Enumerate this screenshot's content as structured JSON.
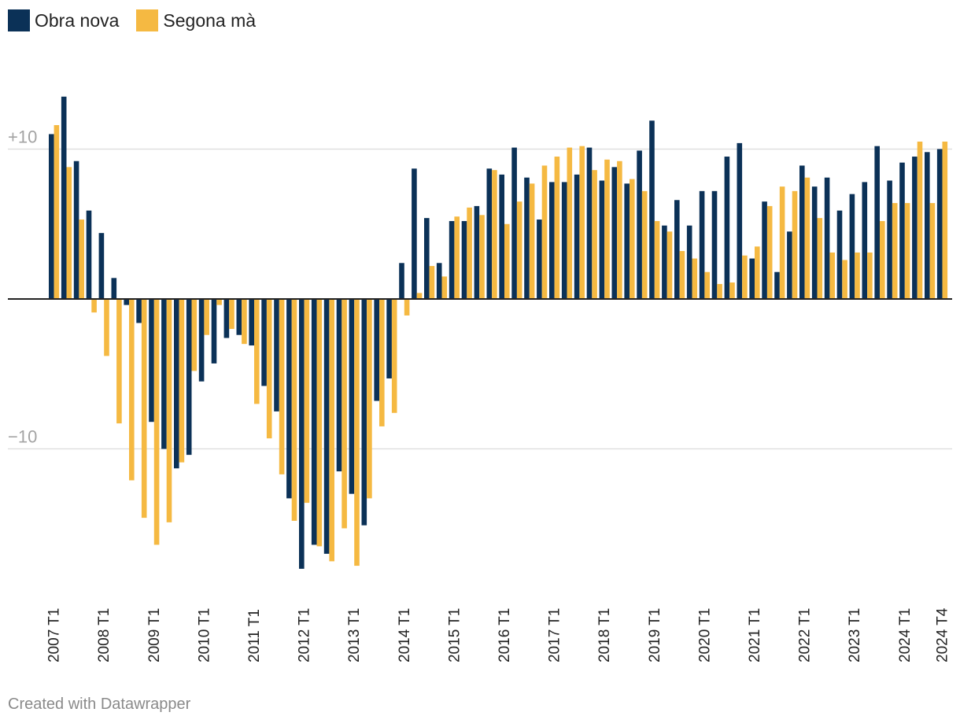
{
  "legend": [
    {
      "name": "Obra nova",
      "color": "#0b3157"
    },
    {
      "name": "Segona mà",
      "color": "#f5b942"
    }
  ],
  "credit": "Created with Datawrapper",
  "chart_data": {
    "type": "bar",
    "title": "",
    "xlabel": "",
    "ylabel": "",
    "ylim": [
      -20,
      14
    ],
    "grid": true,
    "y_ticks": [
      {
        "value": 10,
        "label": "+10"
      },
      {
        "value": 0,
        "label": ""
      },
      {
        "value": -10,
        "label": "−10"
      }
    ],
    "x_tick_labels": [
      {
        "index": 0,
        "label": "2007 T1"
      },
      {
        "index": 4,
        "label": "2008 T1"
      },
      {
        "index": 8,
        "label": "2009 T1"
      },
      {
        "index": 12,
        "label": "2010 T1"
      },
      {
        "index": 16,
        "label": "2011 T1"
      },
      {
        "index": 20,
        "label": "2012 T1"
      },
      {
        "index": 24,
        "label": "2013 T1"
      },
      {
        "index": 28,
        "label": "2014 T1"
      },
      {
        "index": 32,
        "label": "2015 T1"
      },
      {
        "index": 36,
        "label": "2016 T1"
      },
      {
        "index": 40,
        "label": "2017 T1"
      },
      {
        "index": 44,
        "label": "2018 T1"
      },
      {
        "index": 48,
        "label": "2019 T1"
      },
      {
        "index": 52,
        "label": "2020 T1"
      },
      {
        "index": 56,
        "label": "2021 T1"
      },
      {
        "index": 60,
        "label": "2022 T1"
      },
      {
        "index": 64,
        "label": "2023 T1"
      },
      {
        "index": 68,
        "label": "2024 T1"
      },
      {
        "index": 71,
        "label": "2024 T4"
      }
    ],
    "categories": [
      "2007 T1",
      "2007 T2",
      "2007 T3",
      "2007 T4",
      "2008 T1",
      "2008 T2",
      "2008 T3",
      "2008 T4",
      "2009 T1",
      "2009 T2",
      "2009 T3",
      "2009 T4",
      "2010 T1",
      "2010 T2",
      "2010 T3",
      "2010 T4",
      "2011 T1",
      "2011 T2",
      "2011 T3",
      "2011 T4",
      "2012 T1",
      "2012 T2",
      "2012 T3",
      "2012 T4",
      "2013 T1",
      "2013 T2",
      "2013 T3",
      "2013 T4",
      "2014 T1",
      "2014 T2",
      "2014 T3",
      "2014 T4",
      "2015 T1",
      "2015 T2",
      "2015 T3",
      "2015 T4",
      "2016 T1",
      "2016 T2",
      "2016 T3",
      "2016 T4",
      "2017 T1",
      "2017 T2",
      "2017 T3",
      "2017 T4",
      "2018 T1",
      "2018 T2",
      "2018 T3",
      "2018 T4",
      "2019 T1",
      "2019 T2",
      "2019 T3",
      "2019 T4",
      "2020 T1",
      "2020 T2",
      "2020 T3",
      "2020 T4",
      "2021 T1",
      "2021 T2",
      "2021 T3",
      "2021 T4",
      "2022 T1",
      "2022 T2",
      "2022 T3",
      "2022 T4",
      "2023 T1",
      "2023 T2",
      "2023 T3",
      "2023 T4",
      "2024 T1",
      "2024 T2",
      "2024 T3",
      "2024 T4"
    ],
    "series": [
      {
        "name": "Obra nova",
        "color": "#0b3157",
        "values": [
          11.0,
          13.5,
          9.2,
          5.9,
          4.4,
          1.4,
          -0.4,
          -1.6,
          -8.2,
          -10.0,
          -11.3,
          -10.4,
          -5.5,
          -4.3,
          -2.6,
          -2.4,
          -3.1,
          -5.8,
          -7.5,
          -13.3,
          -18.0,
          -16.4,
          -17.0,
          -11.5,
          -13.0,
          -15.1,
          -6.8,
          -5.3,
          2.4,
          8.7,
          5.4,
          2.4,
          5.2,
          5.2,
          6.2,
          8.7,
          8.3,
          10.1,
          8.1,
          5.3,
          7.8,
          7.8,
          8.3,
          10.1,
          7.9,
          8.8,
          7.7,
          9.9,
          11.9,
          4.9,
          6.6,
          4.9,
          7.2,
          7.2,
          9.5,
          10.4,
          2.7,
          6.5,
          1.8,
          4.5,
          8.9,
          7.5,
          8.1,
          5.9,
          7.0,
          7.8,
          10.2,
          7.9,
          9.1,
          9.5,
          9.8,
          10.0
        ]
      },
      {
        "name": "Segona mà",
        "color": "#f5b942",
        "values": [
          11.6,
          8.8,
          5.3,
          -0.9,
          -3.8,
          -8.3,
          -12.1,
          -14.6,
          -16.4,
          -14.9,
          -10.9,
          -4.8,
          -2.4,
          -0.4,
          -2.0,
          -3.0,
          -7.0,
          -9.3,
          -11.7,
          -14.8,
          -13.6,
          -16.5,
          -17.5,
          -15.3,
          -17.8,
          -13.3,
          -8.5,
          -7.6,
          -1.1,
          0.4,
          2.2,
          1.5,
          5.5,
          6.1,
          5.6,
          8.6,
          5.0,
          6.5,
          7.7,
          8.9,
          9.5,
          10.1,
          10.2,
          8.6,
          9.3,
          9.2,
          8.0,
          7.2,
          5.2,
          4.5,
          3.2,
          2.7,
          1.8,
          1.0,
          1.1,
          2.9,
          3.5,
          6.2,
          7.5,
          7.2,
          8.1,
          5.4,
          3.1,
          2.6,
          3.1,
          3.1,
          5.2,
          6.4,
          6.4,
          10.5,
          6.4,
          10.5
        ]
      }
    ]
  }
}
